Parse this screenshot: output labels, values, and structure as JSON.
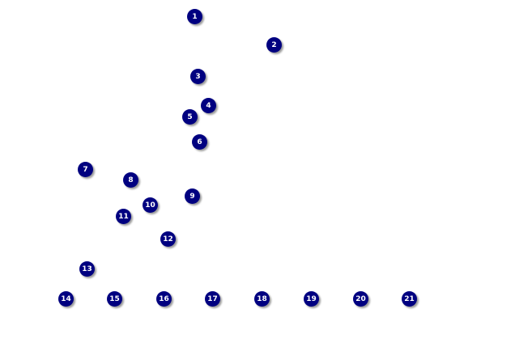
{
  "markers": [
    "1",
    "2",
    "3",
    "4",
    "5",
    "6",
    "7",
    "8",
    "9",
    "10",
    "11",
    "12",
    "13",
    "14",
    "15",
    "16",
    "17",
    "18",
    "19",
    "20",
    "21"
  ],
  "colors": {
    "marker": "#000080",
    "marker_text": "#ffffff",
    "shadow": "#9a9a9a"
  }
}
